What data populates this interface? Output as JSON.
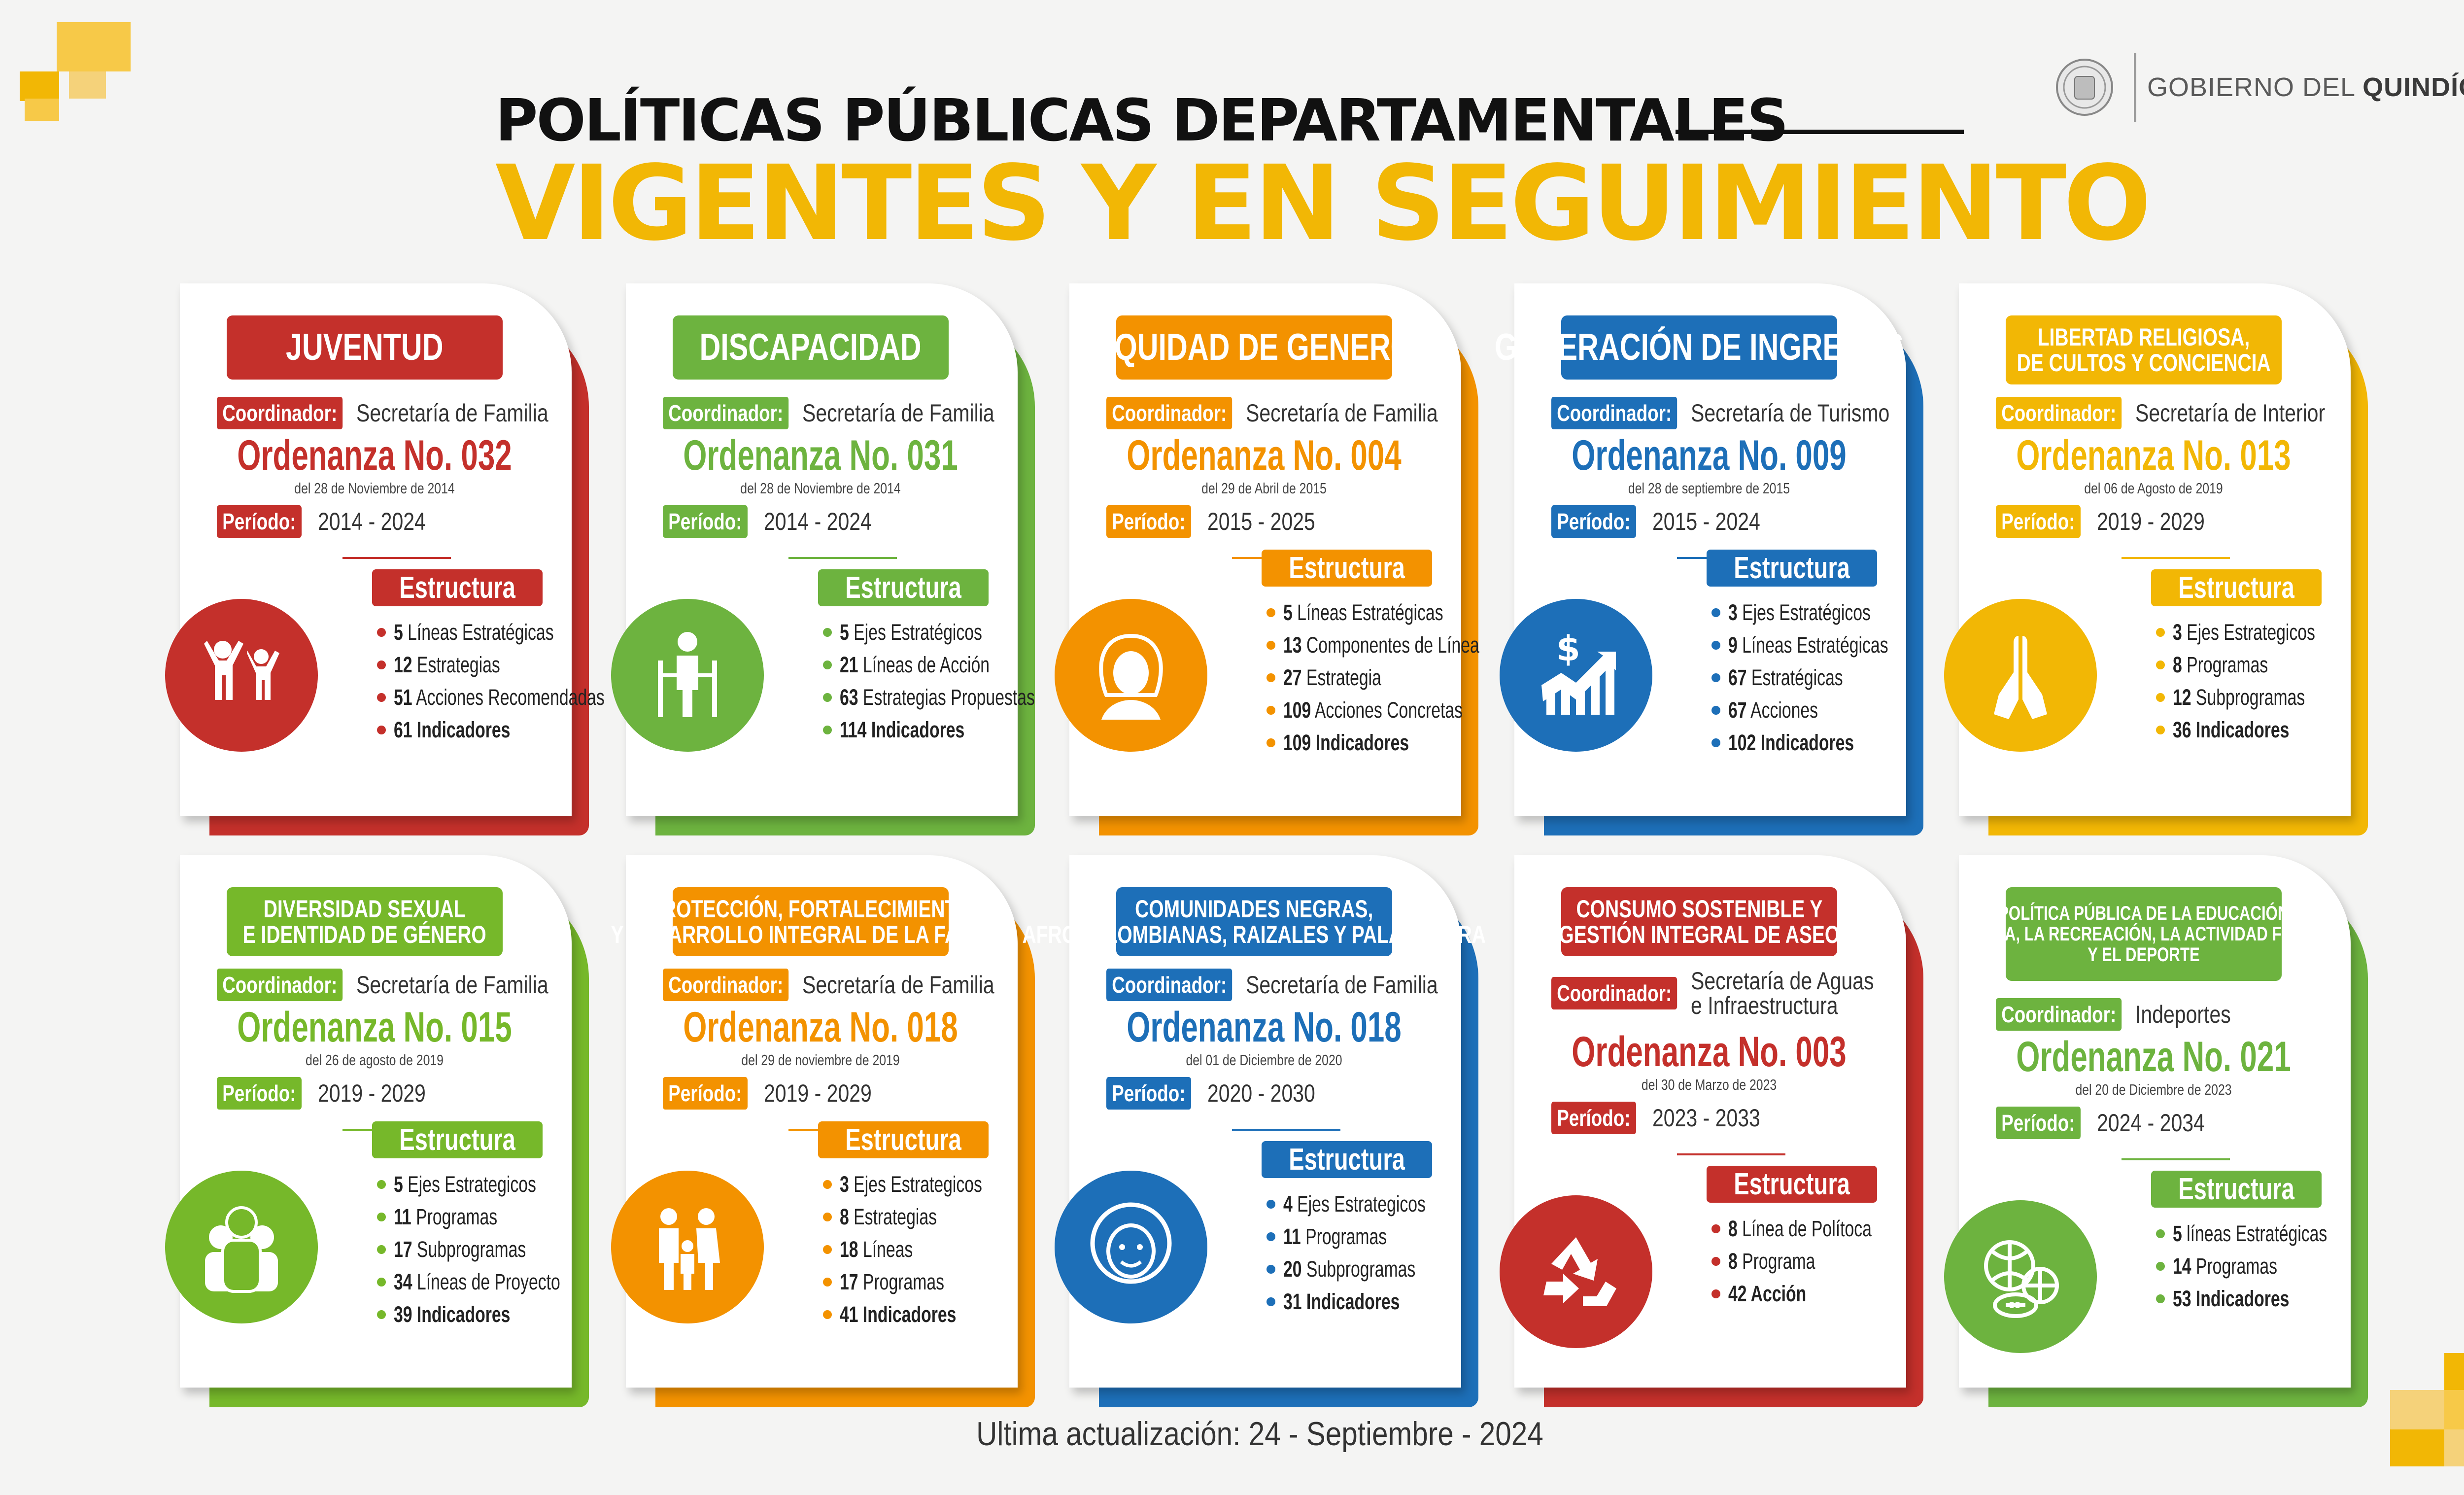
{
  "colors": {
    "red": "#c4302b",
    "green": "#6db33f",
    "orange": "#f39200",
    "blue": "#1d6fb8",
    "yellow": "#f2b705",
    "olive": "#76b82a"
  },
  "header": {
    "title_line1": "POLÍTICAS PÚBLICAS DEPARTAMENTALES",
    "title_line2": "VIGENTES Y EN SEGUIMIENTO"
  },
  "brand": {
    "text_light": "GOBIERNO DEL ",
    "text_bold": "QUINDÍO"
  },
  "footer": {
    "updated": "Ultima actualización:  24 - Septiembre - 2024"
  },
  "labels": {
    "coordinator": "Coordinador:",
    "period": "Período:",
    "structure": "Estructura"
  },
  "policies": [
    {
      "name_lines": [
        "JUVENTUD"
      ],
      "color": "#c4302b",
      "icon": "youth-icon",
      "coordinator": "Secretaría de Familia",
      "ordinance": "Ordenanza No. 032",
      "date": "del 28 de Noviembre de 2014",
      "period": "2014 - 2024",
      "structure": [
        {
          "n": "5",
          "t": "Líneas Estratégicas"
        },
        {
          "n": "12",
          "t": "Estrategias"
        },
        {
          "n": "51",
          "t": "Acciones Recomendadas"
        },
        {
          "n": "61",
          "t": "Indicadores"
        }
      ]
    },
    {
      "name_lines": [
        "DISCAPACIDAD"
      ],
      "color": "#6db33f",
      "icon": "disability-icon",
      "coordinator": "Secretaría de Familia",
      "ordinance": "Ordenanza No. 031",
      "date": "del 28 de Noviembre de 2014",
      "period": "2014 - 2024",
      "structure": [
        {
          "n": "5",
          "t": "Ejes Estratégicos"
        },
        {
          "n": "21",
          "t": "Líneas de Acción"
        },
        {
          "n": "63",
          "t": "Estrategias Propuestas"
        },
        {
          "n": "114",
          "t": "Indicadores"
        }
      ]
    },
    {
      "name_lines": [
        "EQUIDAD DE GENERO"
      ],
      "color": "#f39200",
      "icon": "woman-icon",
      "coordinator": "Secretaría de Familia",
      "ordinance": "Ordenanza No. 004",
      "date": "del 29 de Abril de 2015",
      "period": "2015 - 2025",
      "structure": [
        {
          "n": "5",
          "t": "Líneas Estratégicas"
        },
        {
          "n": "13",
          "t": "Componentes de Línea"
        },
        {
          "n": "27",
          "t": "Estrategia"
        },
        {
          "n": "109",
          "t": "Acciones Concretas"
        },
        {
          "n": "109",
          "t": "Indicadores"
        }
      ]
    },
    {
      "name_lines": [
        "GENERACIÓN DE INGRESOS"
      ],
      "color": "#1d6fb8",
      "icon": "income-chart-icon",
      "coordinator": "Secretaría de Turismo",
      "ordinance": "Ordenanza No. 009",
      "date": "del 28 de septiembre de 2015",
      "period": "2015 - 2024",
      "structure": [
        {
          "n": "3",
          "t": "Ejes Estratégicos"
        },
        {
          "n": "9",
          "t": "Líneas Estratégicas"
        },
        {
          "n": "67",
          "t": "Estratégicas"
        },
        {
          "n": "67",
          "t": "Acciones"
        },
        {
          "n": "102",
          "t": "Indicadores"
        }
      ]
    },
    {
      "name_lines": [
        "LIBERTAD RELIGIOSA,",
        "DE CULTOS Y CONCIENCIA"
      ],
      "color": "#f2b705",
      "icon": "praying-hands-icon",
      "coordinator": "Secretaría de Interior",
      "ordinance": "Ordenanza No. 013",
      "date": "del 06 de Agosto de 2019",
      "period": "2019 - 2029",
      "structure": [
        {
          "n": "3",
          "t": "Ejes Estrategicos"
        },
        {
          "n": "8",
          "t": "Programas"
        },
        {
          "n": "12",
          "t": "Subprogramas"
        },
        {
          "n": "36",
          "t": "Indicadores"
        }
      ]
    },
    {
      "name_lines": [
        "DIVERSIDAD SEXUAL",
        "E IDENTIDAD DE GÉNERO"
      ],
      "color": "#76b82a",
      "icon": "people-diversity-icon",
      "coordinator": "Secretaría de Familia",
      "ordinance": "Ordenanza No. 015",
      "date": "del 26 de agosto de 2019",
      "period": "2019 - 2029",
      "structure": [
        {
          "n": "5",
          "t": "Ejes Estrategicos"
        },
        {
          "n": "11",
          "t": "Programas"
        },
        {
          "n": "17",
          "t": "Subprogramas"
        },
        {
          "n": "34",
          "t": "Líneas de Proyecto"
        },
        {
          "n": "39",
          "t": "Indicadores"
        }
      ]
    },
    {
      "name_lines": [
        "PROTECCIÓN, FORTALECIMIENTO",
        "Y DESARROLLO INTEGRAL DE LA FAMILIA"
      ],
      "color": "#f39200",
      "icon": "family-icon",
      "coordinator": "Secretaría de Familia",
      "ordinance": "Ordenanza No. 018",
      "date": "del 29 de noviembre de 2019",
      "period": "2019 - 2029",
      "structure": [
        {
          "n": "3",
          "t": "Ejes Estrategicos"
        },
        {
          "n": "8",
          "t": "Estrategias"
        },
        {
          "n": "18",
          "t": "Líneas"
        },
        {
          "n": "17",
          "t": "Programas"
        },
        {
          "n": "41",
          "t": "Indicadores"
        }
      ]
    },
    {
      "name_lines": [
        "COMUNIDADES NEGRAS,",
        "AFROCOLOMBIANAS, RAIZALES Y PALANQUERA"
      ],
      "color": "#1d6fb8",
      "icon": "afro-face-icon",
      "coordinator": "Secretaría de Familia",
      "ordinance": "Ordenanza No. 018",
      "date": "del 01 de Diciembre de 2020",
      "period": "2020 - 2030",
      "structure": [
        {
          "n": "4",
          "t": "Ejes Estrategicos"
        },
        {
          "n": "11",
          "t": "Programas"
        },
        {
          "n": "20",
          "t": "Subprogramas"
        },
        {
          "n": "31",
          "t": "Indicadores"
        }
      ]
    },
    {
      "name_lines": [
        "CONSUMO SOSTENIBLE Y",
        "GESTIÓN INTEGRAL DE ASEO"
      ],
      "color": "#c4302b",
      "icon": "recycle-icon",
      "coordinator_lines": [
        "Secretaría de Aguas",
        "e Infraestructura"
      ],
      "ordinance": "Ordenanza No. 003",
      "date": "del 30 de Marzo de 2023",
      "period": "2023 - 2033",
      "structure": [
        {
          "n": "8",
          "t": "Línea de Polítoca"
        },
        {
          "n": "8",
          "t": "Programa"
        },
        {
          "n": "42",
          "t": "Acción"
        }
      ]
    },
    {
      "name_lines": [
        "POLÍTICA PÚBLICA DE LA EDUCACIÓN",
        "FÍSICA, LA RECREACIÓN, LA ACTIVIDAD FÍSICA",
        "Y EL DEPORTE"
      ],
      "color": "#6db33f",
      "icon": "sports-balls-icon",
      "coordinator": "Indeportes",
      "ordinance": "Ordenanza No. 021",
      "date": "del 20 de Diciembre de 2023",
      "period": "2024 - 2034",
      "structure": [
        {
          "n": "5",
          "t": "líneas Estratégicas"
        },
        {
          "n": "14",
          "t": "Programas"
        },
        {
          "n": "53",
          "t": "Indicadores"
        }
      ]
    }
  ]
}
